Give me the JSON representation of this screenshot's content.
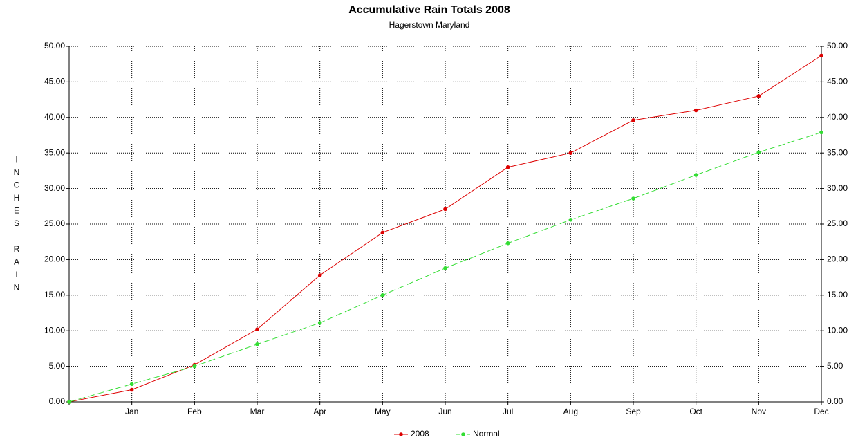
{
  "chart_data": {
    "type": "line",
    "title": "Accumulative Rain Totals 2008",
    "subtitle": "Hagerstown Maryland",
    "y_label": "INCHES RAIN",
    "categories": [
      null,
      "Jan",
      "Feb",
      "Mar",
      "Apr",
      "May",
      "Jun",
      "Jul",
      "Aug",
      "Sep",
      "Oct",
      "Nov",
      "Dec"
    ],
    "series": [
      {
        "name": "2008",
        "color": "#dd0000",
        "dashed": false,
        "values": [
          0,
          1.7,
          5.2,
          10.2,
          17.8,
          23.8,
          27.1,
          33.0,
          35.0,
          39.6,
          41.0,
          43.0,
          48.7
        ]
      },
      {
        "name": "Normal",
        "color": "#33dd33",
        "dashed": true,
        "values": [
          0,
          2.5,
          5.0,
          8.1,
          11.1,
          15.0,
          18.8,
          22.3,
          25.6,
          28.6,
          31.9,
          35.1,
          37.9
        ]
      }
    ],
    "ylim": [
      0,
      50
    ],
    "yticks": [
      {
        "value": 0,
        "label": "0.00"
      },
      {
        "value": 5,
        "label": "5.00"
      },
      {
        "value": 10,
        "label": "10.00"
      },
      {
        "value": 15,
        "label": "15.00"
      },
      {
        "value": 20,
        "label": "20.00"
      },
      {
        "value": 25,
        "label": "25.00"
      },
      {
        "value": 30,
        "label": "30.00"
      },
      {
        "value": 35,
        "label": "35.00"
      },
      {
        "value": 40,
        "label": "40.00"
      },
      {
        "value": 45,
        "label": "45.00"
      },
      {
        "value": 50,
        "label": "50.00"
      }
    ],
    "y2lim": [
      0,
      50
    ],
    "y2ticks": [
      {
        "value": 0,
        "label": "0.00"
      },
      {
        "value": 5,
        "label": "5.00"
      },
      {
        "value": 10,
        "label": "10.00"
      },
      {
        "value": 15,
        "label": "15.00"
      },
      {
        "value": 20,
        "label": "20.00"
      },
      {
        "value": 25,
        "label": "25.00"
      },
      {
        "value": 30,
        "label": "30.00"
      },
      {
        "value": 35,
        "label": "35.00"
      },
      {
        "value": 40,
        "label": "40.00"
      },
      {
        "value": 45,
        "label": "45.00"
      },
      {
        "value": 50,
        "label": "50.00"
      }
    ],
    "grid": true,
    "legend": "bottom"
  }
}
